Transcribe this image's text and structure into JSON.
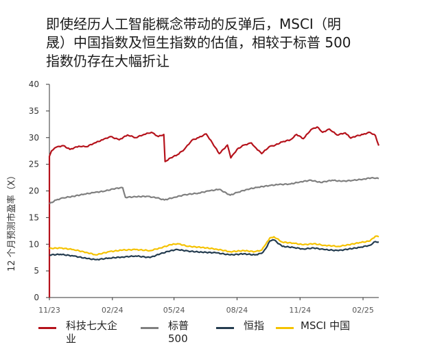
{
  "chart_data": {
    "type": "line",
    "title": "即使经历人工智能概念带动的反弹后，MSCI（明晟）中国指数及恒生指数的估值，相较于标普 500 指数仍存在大幅折让",
    "title_lines": [
      "即使经历人工智能概念带动的反弹后，MSCI（明",
      "晟）中国指数及恒生指数的估值，相较于标普 500",
      "指数仍存在大幅折让"
    ],
    "xlabel": "",
    "ylabel": "12 个月预测市盈率（X）",
    "ylim": [
      0,
      40
    ],
    "yticks": [
      0,
      5,
      10,
      15,
      20,
      25,
      30,
      35,
      40
    ],
    "x_range": [
      "2023-11-15",
      "2025-03-10"
    ],
    "xticks": [
      {
        "date": "2023-11-15",
        "label": "11/23"
      },
      {
        "date": "2024-02-15",
        "label": "02/24"
      },
      {
        "date": "2024-05-15",
        "label": "05/24"
      },
      {
        "date": "2024-08-15",
        "label": "08/24"
      },
      {
        "date": "2024-11-15",
        "label": "11/24"
      },
      {
        "date": "2025-02-15",
        "label": "02/25"
      }
    ],
    "grid": false,
    "legend_position": "bottom",
    "series": [
      {
        "name": "科技七大企业",
        "color": "#b5121b",
        "x": [
          "2023-11-15",
          "2023-11-18",
          "2023-11-25",
          "2023-12-05",
          "2023-12-15",
          "2023-12-28",
          "2024-01-08",
          "2024-01-20",
          "2024-02-01",
          "2024-02-12",
          "2024-02-25",
          "2024-03-08",
          "2024-03-20",
          "2024-04-01",
          "2024-04-12",
          "2024-04-22",
          "2024-04-30",
          "2024-05-02",
          "2024-05-10",
          "2024-05-20",
          "2024-05-30",
          "2024-06-10",
          "2024-06-20",
          "2024-07-01",
          "2024-07-10",
          "2024-07-20",
          "2024-08-01",
          "2024-08-06",
          "2024-08-15",
          "2024-08-25",
          "2024-09-05",
          "2024-09-12",
          "2024-09-20",
          "2024-10-01",
          "2024-10-10",
          "2024-10-20",
          "2024-11-01",
          "2024-11-10",
          "2024-11-20",
          "2024-12-01",
          "2024-12-10",
          "2024-12-18",
          "2024-12-28",
          "2025-01-08",
          "2025-01-20",
          "2025-01-28",
          "2025-02-05",
          "2025-02-15",
          "2025-02-25",
          "2025-03-05",
          "2025-03-10"
        ],
        "values": [
          26.5,
          27.5,
          28.2,
          28.5,
          27.8,
          28.4,
          28.3,
          29.0,
          29.6,
          30.2,
          29.6,
          30.5,
          30.0,
          30.6,
          31.0,
          30.2,
          30.6,
          25.5,
          26.2,
          26.8,
          27.8,
          29.5,
          30.0,
          30.7,
          29.0,
          27.0,
          28.6,
          26.2,
          27.8,
          28.6,
          29.0,
          28.0,
          27.0,
          28.3,
          28.6,
          29.2,
          29.6,
          30.6,
          29.8,
          31.5,
          32.0,
          31.0,
          31.6,
          30.5,
          30.9,
          29.9,
          30.3,
          30.6,
          31.0,
          30.4,
          28.5
        ]
      },
      {
        "name": "标普 500",
        "color": "#7f7f7f",
        "x": [
          "2023-11-15",
          "2023-11-25",
          "2023-12-05",
          "2023-12-20",
          "2024-01-05",
          "2024-01-20",
          "2024-02-05",
          "2024-02-20",
          "2024-03-01",
          "2024-03-05",
          "2024-03-20",
          "2024-04-05",
          "2024-04-20",
          "2024-05-01",
          "2024-05-15",
          "2024-06-01",
          "2024-06-20",
          "2024-07-05",
          "2024-07-20",
          "2024-08-05",
          "2024-08-15",
          "2024-08-30",
          "2024-09-15",
          "2024-10-01",
          "2024-10-15",
          "2024-11-01",
          "2024-11-15",
          "2024-12-01",
          "2024-12-15",
          "2025-01-01",
          "2025-01-15",
          "2025-02-01",
          "2025-02-15",
          "2025-03-01",
          "2025-03-10"
        ],
        "values": [
          17.6,
          18.3,
          18.7,
          19.0,
          19.4,
          19.7,
          20.0,
          20.5,
          20.6,
          18.8,
          18.9,
          19.0,
          18.7,
          18.3,
          18.8,
          19.3,
          19.6,
          20.0,
          20.3,
          19.2,
          19.7,
          20.3,
          20.7,
          21.0,
          21.2,
          21.3,
          21.7,
          22.0,
          21.6,
          22.0,
          21.8,
          22.0,
          22.2,
          22.5,
          22.3
        ]
      },
      {
        "name": "恒指",
        "color": "#243c4f",
        "x": [
          "2023-11-15",
          "2023-12-01",
          "2023-12-20",
          "2024-01-10",
          "2024-01-22",
          "2024-02-10",
          "2024-03-01",
          "2024-03-20",
          "2024-04-10",
          "2024-04-25",
          "2024-05-10",
          "2024-05-20",
          "2024-06-05",
          "2024-06-25",
          "2024-07-15",
          "2024-08-05",
          "2024-08-25",
          "2024-09-10",
          "2024-09-20",
          "2024-09-26",
          "2024-10-02",
          "2024-10-08",
          "2024-10-20",
          "2024-11-05",
          "2024-11-20",
          "2024-12-05",
          "2024-12-20",
          "2025-01-10",
          "2025-01-25",
          "2025-02-10",
          "2025-02-25",
          "2025-03-05",
          "2025-03-10"
        ],
        "values": [
          8.0,
          8.1,
          7.8,
          7.3,
          7.1,
          7.4,
          7.6,
          7.8,
          7.5,
          8.2,
          8.8,
          9.0,
          8.7,
          8.5,
          8.4,
          8.0,
          8.2,
          8.0,
          8.3,
          9.2,
          10.6,
          10.8,
          9.6,
          9.4,
          9.1,
          9.3,
          9.0,
          8.8,
          9.1,
          9.4,
          9.8,
          10.5,
          10.4
        ]
      },
      {
        "name": "MSCI 中国",
        "color": "#f5c200",
        "x": [
          "2023-11-15",
          "2023-12-01",
          "2023-12-20",
          "2024-01-10",
          "2024-01-22",
          "2024-02-10",
          "2024-03-01",
          "2024-03-20",
          "2024-04-10",
          "2024-04-25",
          "2024-05-10",
          "2024-05-20",
          "2024-06-05",
          "2024-06-25",
          "2024-07-15",
          "2024-08-05",
          "2024-08-25",
          "2024-09-10",
          "2024-09-20",
          "2024-09-26",
          "2024-10-02",
          "2024-10-08",
          "2024-10-20",
          "2024-11-05",
          "2024-11-20",
          "2024-12-05",
          "2024-12-20",
          "2025-01-10",
          "2025-01-25",
          "2025-02-10",
          "2025-02-25",
          "2025-03-05",
          "2025-03-10"
        ],
        "values": [
          9.2,
          9.3,
          9.0,
          8.4,
          8.0,
          8.6,
          8.9,
          9.0,
          8.8,
          9.3,
          9.9,
          10.1,
          9.6,
          9.4,
          9.1,
          8.6,
          8.8,
          8.6,
          8.9,
          10.0,
          11.2,
          11.4,
          10.4,
          10.2,
          9.9,
          10.1,
          9.8,
          9.6,
          9.9,
          10.3,
          10.6,
          11.5,
          11.4
        ]
      }
    ]
  }
}
